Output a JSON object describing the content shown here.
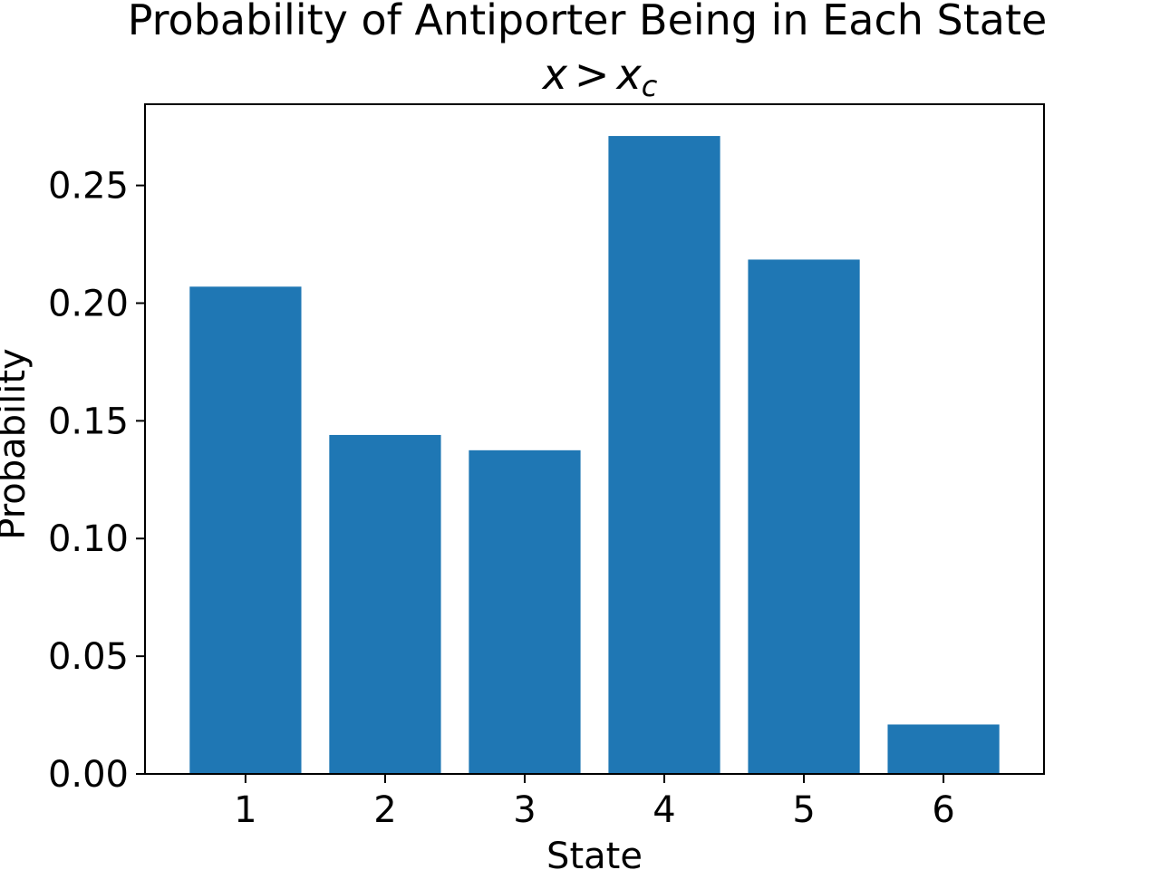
{
  "chart_data": {
    "type": "bar",
    "title": "Probability of Antiporter Being in Each State",
    "subtitle": {
      "lhs": "x",
      "operator": ">",
      "rhs": "x",
      "rhs_subscript": "c"
    },
    "xlabel": "State",
    "ylabel": "Probability",
    "categories": [
      "1",
      "2",
      "3",
      "4",
      "5",
      "6"
    ],
    "values": [
      0.207,
      0.144,
      0.1375,
      0.271,
      0.2185,
      0.021
    ],
    "ylim": [
      0,
      0.2845
    ],
    "yticks": [
      0,
      0.05,
      0.1,
      0.15,
      0.2,
      0.25
    ],
    "ytick_labels": [
      "0.00",
      "0.05",
      "0.10",
      "0.15",
      "0.20",
      "0.25"
    ],
    "bar_color": "#1f77b4",
    "grid": false,
    "legend": "none"
  }
}
